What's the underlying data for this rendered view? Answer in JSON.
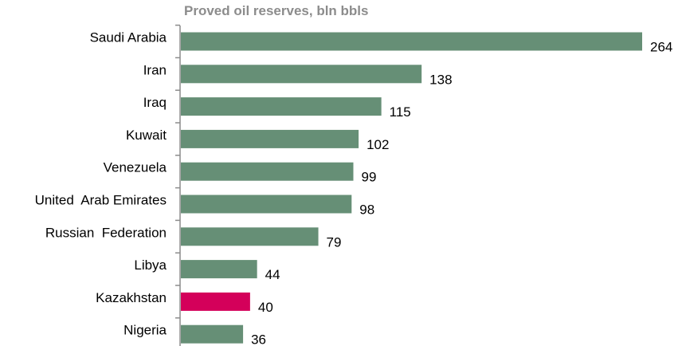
{
  "chart_data": {
    "type": "bar",
    "orientation": "horizontal",
    "title": "Proved oil reserves, bln bbls",
    "categories": [
      "Saudi Arabia",
      "Iran",
      "Iraq",
      "Kuwait",
      "Venezuela",
      "United  Arab Emirates",
      "Russian  Federation",
      "Libya",
      "Kazakhstan",
      "Nigeria"
    ],
    "values": [
      264,
      138,
      115,
      102,
      99,
      98,
      79,
      44,
      40,
      36
    ],
    "value_labels": [
      "264",
      "138",
      "115",
      "102",
      "99",
      "98",
      "79",
      "44",
      "40",
      "36"
    ],
    "highlight_category": "Kazakhstan",
    "xlim": [
      0,
      264
    ],
    "grid": false,
    "legend": "none"
  },
  "colors": {
    "bar": "#668f76",
    "highlight": "#d4005a",
    "title": "#8c8c8c",
    "axis": "#8c8c8c"
  }
}
